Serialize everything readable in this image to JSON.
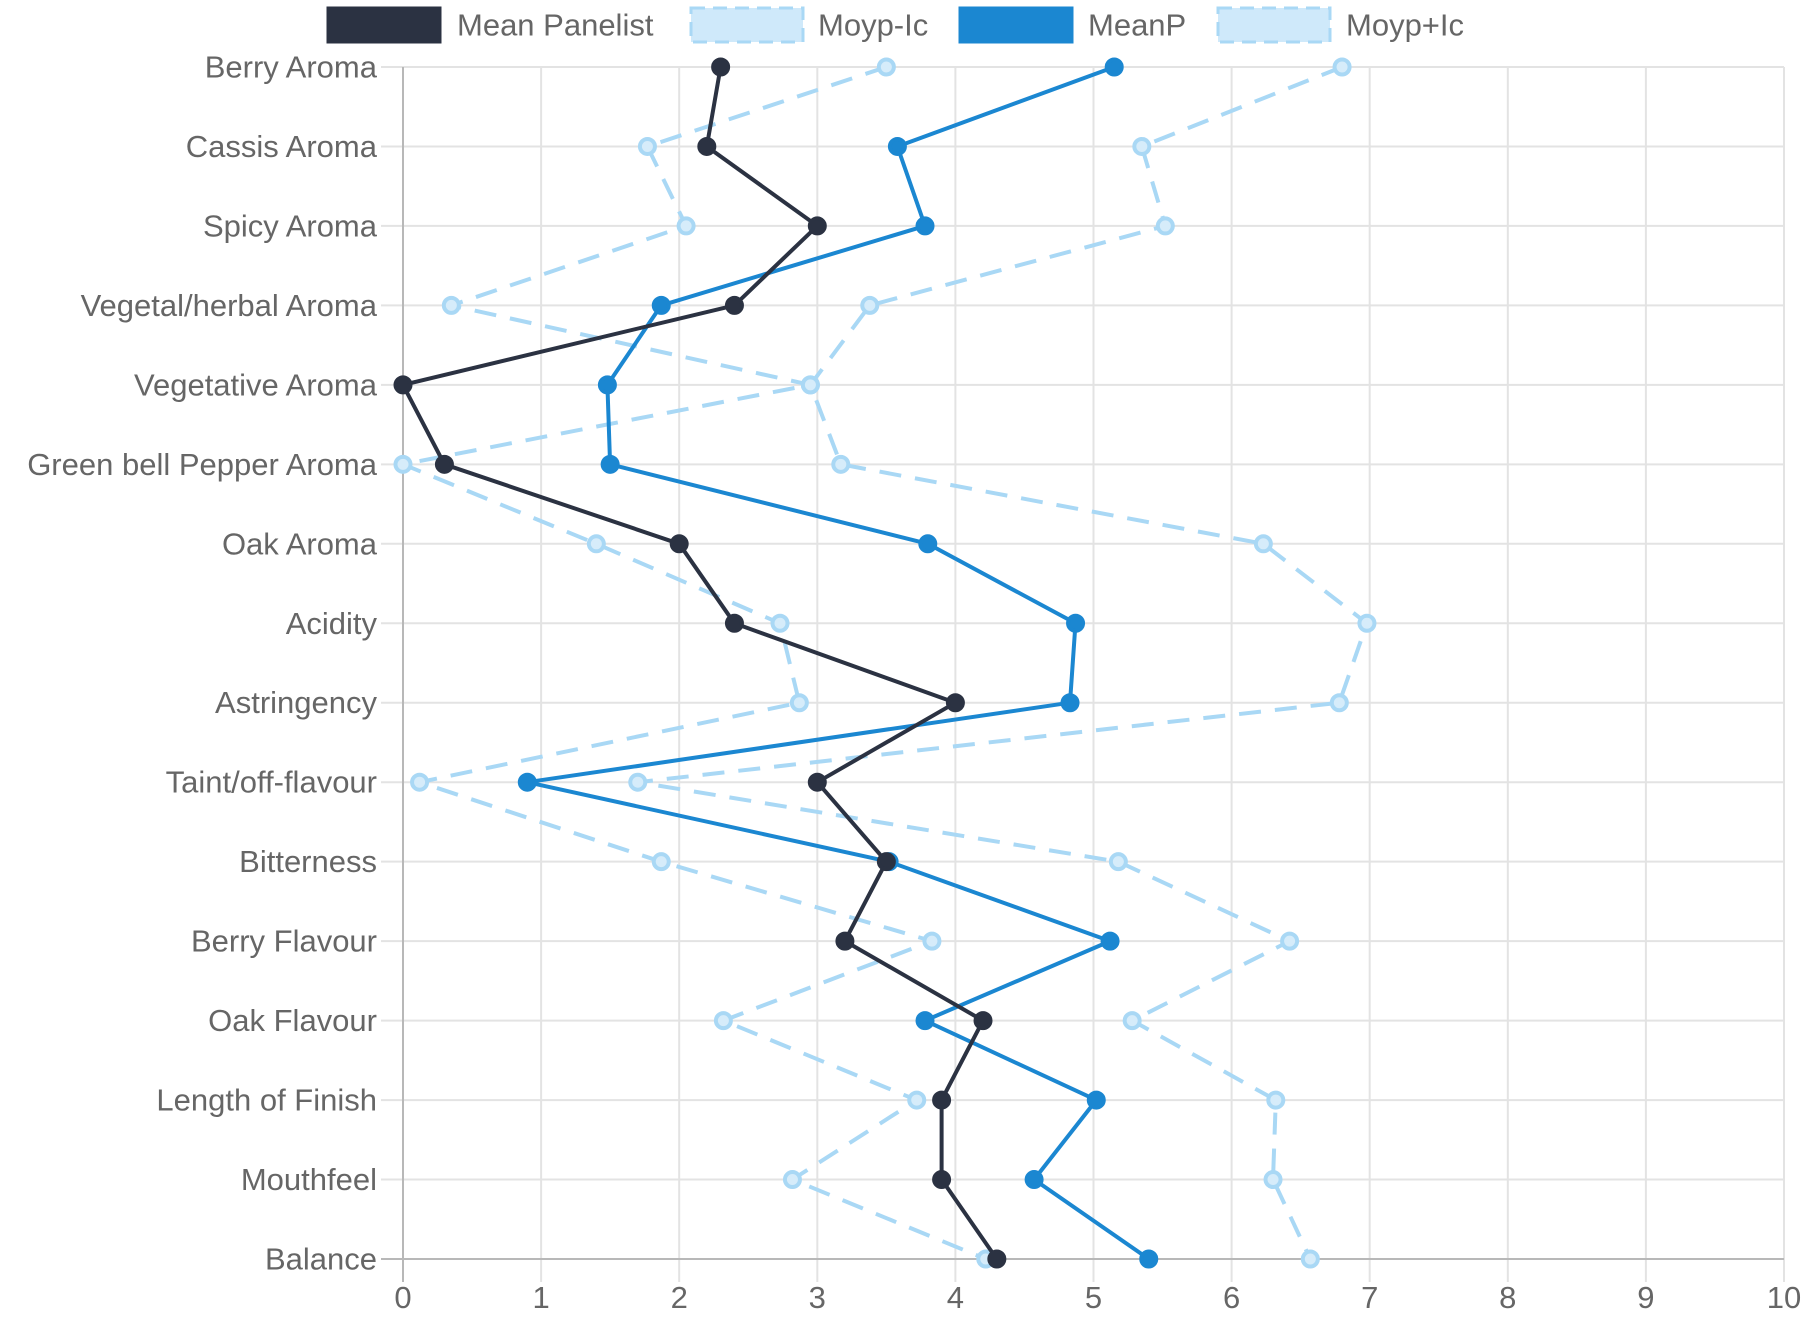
{
  "chart_data": {
    "type": "line",
    "orientation": "horizontal-values",
    "title": "",
    "xlabel": "",
    "ylabel": "",
    "xlim": [
      0,
      10
    ],
    "x_ticks": [
      "0",
      "1",
      "2",
      "3",
      "4",
      "5",
      "6",
      "7",
      "8",
      "9",
      "10"
    ],
    "grid": true,
    "legend_position": "top",
    "categories": [
      "Berry Aroma",
      "Cassis Aroma",
      "Spicy Aroma",
      "Vegetal/herbal Aroma",
      "Vegetative Aroma",
      "Green bell Pepper Aroma",
      "Oak Aroma",
      "Acidity",
      "Astringency",
      "Taint/off-flavour",
      "Bitterness",
      "Berry Flavour",
      "Oak Flavour",
      "Length of Finish",
      "Mouthfeel",
      "Balance"
    ],
    "series": [
      {
        "name": "Mean Panelist",
        "color": "#2b3242",
        "dashed": false,
        "values": [
          2.3,
          2.2,
          3.0,
          2.4,
          0.0,
          0.3,
          2.0,
          2.4,
          4.0,
          3.0,
          3.5,
          3.2,
          4.2,
          3.9,
          3.9,
          4.3
        ]
      },
      {
        "name": "Moyp-Ic",
        "color": "#a9d8f5",
        "dashed": true,
        "values": [
          3.5,
          1.77,
          2.05,
          0.35,
          2.95,
          0.0,
          1.4,
          2.73,
          2.87,
          0.12,
          1.87,
          3.83,
          2.32,
          3.72,
          2.82,
          4.22
        ]
      },
      {
        "name": "MeanP",
        "color": "#1b87d1",
        "dashed": false,
        "values": [
          5.15,
          3.58,
          3.78,
          1.87,
          1.48,
          1.5,
          3.8,
          4.87,
          4.83,
          0.9,
          3.52,
          5.12,
          3.78,
          5.02,
          4.57,
          5.4
        ]
      },
      {
        "name": "Moyp+Ic",
        "color": "#a9d8f5",
        "dashed": true,
        "values": [
          6.8,
          5.35,
          5.52,
          3.38,
          2.95,
          3.17,
          6.23,
          6.98,
          6.78,
          1.7,
          5.18,
          6.42,
          5.28,
          6.32,
          6.3,
          6.57
        ]
      }
    ]
  }
}
